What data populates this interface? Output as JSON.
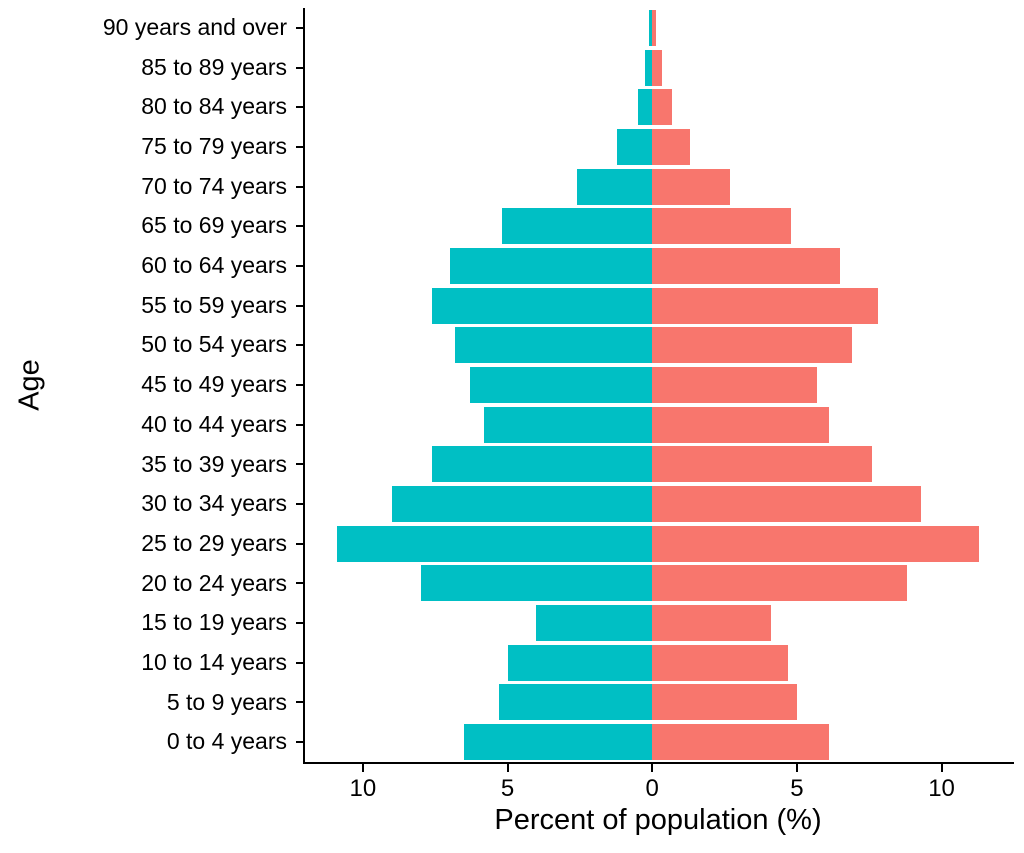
{
  "chart_data": {
    "type": "bar",
    "variant": "population-pyramid",
    "title": "",
    "xlabel": "Percent of population (%)",
    "ylabel": "Age",
    "background": "#FFFFFF",
    "axis_color": "#000000",
    "grid": false,
    "legend": "none",
    "categories": [
      "90 years and over",
      "85 to 89 years",
      "80 to 84 years",
      "75 to 79 years",
      "70 to 74 years",
      "65 to 69 years",
      "60 to 64 years",
      "55 to 59 years",
      "50 to 54 years",
      "45 to 49 years",
      "40 to 44 years",
      "35 to 39 years",
      "30 to 34 years",
      "25 to 29 years",
      "20 to 24 years",
      "15 to 19 years",
      "10 to 14 years",
      "5 to 9 years",
      "0 to 4 years"
    ],
    "series": [
      {
        "name": "left",
        "color": "#00BFC4",
        "values": [
          0.1,
          0.25,
          0.5,
          1.2,
          2.6,
          5.2,
          7.0,
          7.6,
          6.8,
          6.3,
          5.8,
          7.6,
          9.0,
          10.9,
          8.0,
          4.0,
          5.0,
          5.3,
          6.5
        ]
      },
      {
        "name": "right",
        "color": "#F8766D",
        "values": [
          0.12,
          0.35,
          0.7,
          1.3,
          2.7,
          4.8,
          6.5,
          7.8,
          6.9,
          5.7,
          6.1,
          7.6,
          9.3,
          11.3,
          8.8,
          4.1,
          4.7,
          5.0,
          6.1
        ]
      }
    ],
    "x_ticks": [
      -10,
      -5,
      0,
      5,
      10
    ],
    "x_tick_labels": [
      "10",
      "5",
      "0",
      "5",
      "10"
    ],
    "xlim": [
      -12,
      12.4
    ]
  }
}
